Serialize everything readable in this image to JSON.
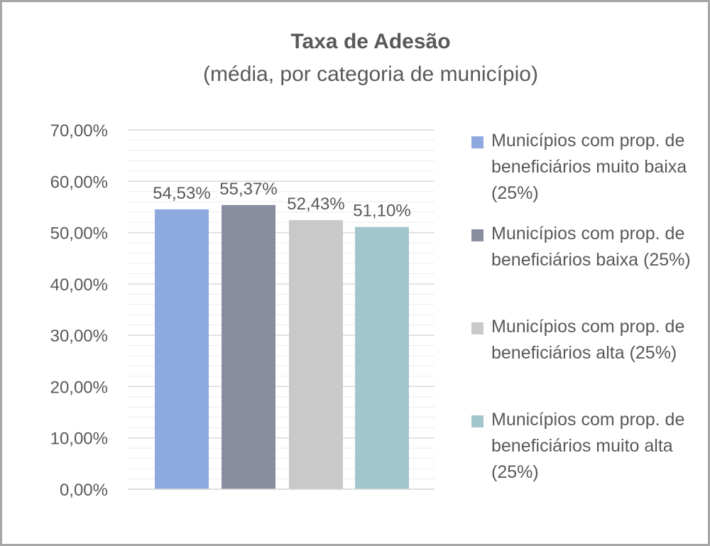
{
  "chart_data": {
    "type": "bar",
    "title": "Taxa de Adesão",
    "subtitle": "(média, por categoria de município)",
    "xlabel": "",
    "ylabel": "",
    "ylim": [
      0,
      70
    ],
    "yticks": [
      0,
      10,
      20,
      30,
      40,
      50,
      60,
      70
    ],
    "ytick_labels": [
      "0,00%",
      "10,00%",
      "20,00%",
      "30,00%",
      "40,00%",
      "50,00%",
      "60,00%",
      "70,00%"
    ],
    "grid": true,
    "legend_position": "right",
    "series": [
      {
        "name": "Municípios com prop. de beneficiários muito baixa (25%)",
        "value": 54.53,
        "label": "54,53%",
        "color": "#8ea9e0"
      },
      {
        "name": "Municípios com prop. de beneficiários baixa (25%)",
        "value": 55.37,
        "label": "55,37%",
        "color": "#8a8ca0"
      },
      {
        "name": "Municípios com prop. de beneficiários alta (25%)",
        "value": 52.43,
        "label": "52,43%",
        "color": "#c9c9c9"
      },
      {
        "name": "Municípios com prop. de beneficiários muito alta (25%)",
        "value": 51.1,
        "label": "51,10%",
        "color": "#a3c6cc"
      }
    ]
  }
}
